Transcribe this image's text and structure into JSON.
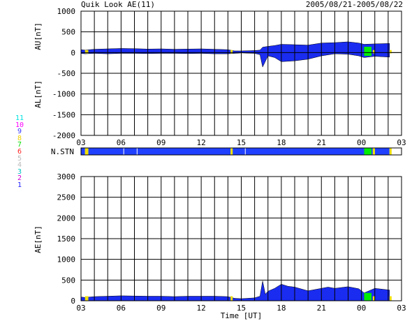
{
  "header": {
    "title": "Quik Look AE(11)",
    "date_range": "2005/08/21-2005/08/22"
  },
  "colors": {
    "fill_main": "#1a2cf0",
    "fill_alt": "#2040ff",
    "gap_yellow": "#f0e000",
    "green": "#00ee00",
    "grid": "#000000"
  },
  "station_legend": [
    {
      "label": "11",
      "color": "#00e0e0"
    },
    {
      "label": "10",
      "color": "#ff00ff"
    },
    {
      "label": "9",
      "color": "#3a3aff"
    },
    {
      "label": "8",
      "color": "#f0d000"
    },
    {
      "label": "7",
      "color": "#00dd00"
    },
    {
      "label": "6",
      "color": "#ff2020"
    },
    {
      "label": "5",
      "color": "#bbbbbb"
    },
    {
      "label": "4",
      "color": "#bbbbbb"
    },
    {
      "label": "3",
      "color": "#00c0c0"
    },
    {
      "label": "2",
      "color": "#d000d0"
    },
    {
      "label": "1",
      "color": "#2020ff"
    }
  ],
  "chart_data": [
    {
      "type": "area",
      "ylabel_top": "AU[nT]",
      "ylabel_bottom": "AL[nT]",
      "ylim": [
        -2000,
        1000
      ],
      "yticks": [
        "1000",
        "500",
        "0",
        "-500",
        "-1000",
        "-1500",
        "-2000"
      ],
      "xticks": [
        "03",
        "06",
        "09",
        "12",
        "15",
        "18",
        "21",
        "00",
        "03"
      ],
      "xlim_hours": [
        3,
        27
      ],
      "upper_envelope": {
        "x": [
          3,
          3.3,
          4,
          5,
          6,
          7,
          8,
          9,
          10,
          11,
          12,
          13,
          14,
          14.5,
          15,
          16,
          16.4,
          16.6,
          17,
          17.5,
          18,
          19,
          20,
          21,
          22,
          23,
          23.8,
          24.2,
          25,
          26.1
        ],
        "y": [
          70,
          60,
          80,
          90,
          100,
          95,
          85,
          90,
          80,
          85,
          90,
          80,
          70,
          40,
          40,
          50,
          60,
          130,
          150,
          170,
          200,
          190,
          180,
          230,
          240,
          260,
          230,
          200,
          210,
          220
        ]
      },
      "lower_envelope": {
        "x": [
          3,
          3.3,
          4,
          5,
          6,
          7,
          8,
          9,
          10,
          11,
          12,
          13,
          14,
          14.5,
          15,
          16,
          16.4,
          16.6,
          17,
          17.5,
          18,
          19,
          20,
          21,
          22,
          23,
          23.8,
          24.2,
          25,
          26.1
        ],
        "y": [
          -20,
          -30,
          -20,
          -30,
          -20,
          -20,
          -25,
          -20,
          -20,
          -25,
          -20,
          -30,
          -30,
          -20,
          -10,
          -20,
          -50,
          -350,
          -80,
          -120,
          -220,
          -200,
          -160,
          -80,
          -30,
          -40,
          -80,
          -120,
          -90,
          -110
        ]
      },
      "gaps_hours": [
        [
          3.3,
          3.55
        ],
        [
          14.2,
          14.35
        ],
        [
          24.85,
          25.0
        ],
        [
          26.1,
          26.2
        ]
      ],
      "green_hours": [
        [
          24.2,
          24.75
        ]
      ]
    },
    {
      "type": "bar",
      "label": "N.STN",
      "value_hours": [
        [
          3,
          3.3
        ],
        [
          3.55,
          14.2
        ],
        [
          14.35,
          24.85
        ],
        [
          25.0,
          26.1
        ]
      ],
      "gap_hours": [
        [
          3.3,
          3.55
        ],
        [
          14.2,
          14.35
        ],
        [
          24.85,
          25.0
        ],
        [
          26.1,
          26.2
        ]
      ],
      "green_hours": [
        [
          24.2,
          24.75
        ]
      ],
      "ticks_hours": [
        6.2,
        7.2,
        15.3
      ]
    },
    {
      "type": "area",
      "ylabel": "AE[nT]",
      "xlabel": "Time [UT]",
      "ylim": [
        0,
        3000
      ],
      "yticks": [
        "3000",
        "2500",
        "2000",
        "1500",
        "1000",
        "500",
        "0"
      ],
      "xticks": [
        "03",
        "06",
        "09",
        "12",
        "15",
        "18",
        "21",
        "00",
        "03"
      ],
      "xlim_hours": [
        3,
        27
      ],
      "series": {
        "x": [
          3,
          3.3,
          4,
          5,
          6,
          7,
          8,
          9,
          10,
          11,
          12,
          13,
          14,
          14.5,
          15,
          16,
          16.4,
          16.6,
          16.8,
          17,
          17.5,
          18,
          18.5,
          19,
          20,
          21,
          21.5,
          22,
          23,
          23.8,
          24.2,
          25,
          26.1
        ],
        "y": [
          90,
          80,
          100,
          110,
          120,
          115,
          110,
          110,
          100,
          110,
          110,
          110,
          100,
          60,
          50,
          70,
          110,
          480,
          160,
          230,
          300,
          400,
          350,
          330,
          240,
          300,
          330,
          300,
          340,
          290,
          190,
          300,
          260
        ]
      },
      "gaps_hours": [
        [
          3.3,
          3.55
        ],
        [
          14.2,
          14.35
        ],
        [
          24.85,
          25.0
        ],
        [
          26.1,
          26.2
        ]
      ],
      "green_hours": [
        [
          24.2,
          24.75
        ]
      ]
    }
  ]
}
